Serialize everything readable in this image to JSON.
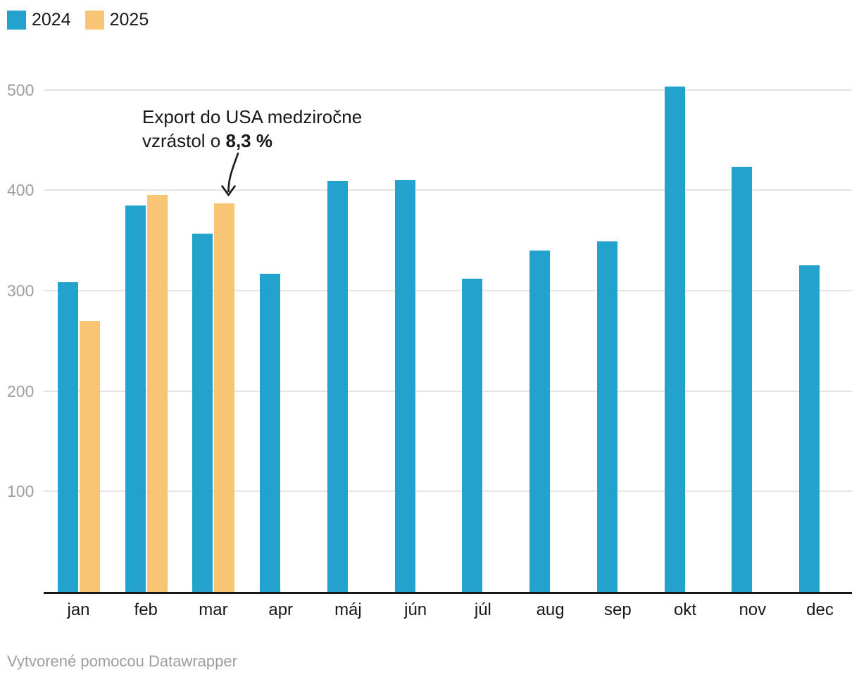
{
  "legend": {
    "items": [
      {
        "label": "2024",
        "color": "#22a3cd"
      },
      {
        "label": "2025",
        "color": "#f7c672"
      }
    ]
  },
  "annotation": {
    "line1": "Export do USA medziročne",
    "line2_prefix": "vzrástol o ",
    "line2_bold": "8,3 %",
    "arrow_icon": "curved-down-arrow"
  },
  "footer": {
    "text": "Vytvorené pomocou Datawrapper"
  },
  "chart_data": {
    "type": "bar",
    "title": "",
    "xlabel": "",
    "ylabel": "",
    "categories": [
      "jan",
      "feb",
      "mar",
      "apr",
      "máj",
      "jún",
      "júl",
      "aug",
      "sep",
      "okt",
      "nov",
      "dec"
    ],
    "series": [
      {
        "name": "2024",
        "color": "#22a3cd",
        "values": [
          308,
          385,
          357,
          317,
          409,
          410,
          312,
          340,
          349,
          503,
          423,
          325
        ]
      },
      {
        "name": "2025",
        "color": "#f7c672",
        "values": [
          270,
          395,
          387,
          null,
          null,
          null,
          null,
          null,
          null,
          null,
          null,
          null
        ]
      }
    ],
    "ylim": [
      0,
      520
    ],
    "yticks": [
      100,
      200,
      300,
      400,
      500
    ],
    "grid": true,
    "legend_position": "top-left",
    "annotation_target": {
      "series": "2025",
      "category": "mar"
    }
  },
  "colors": {
    "gridline": "#e4e4e4",
    "axis_line": "#18181a",
    "tick_label": "#9e9e9e",
    "text": "#18181a",
    "footer_text": "#9e9e9e"
  }
}
